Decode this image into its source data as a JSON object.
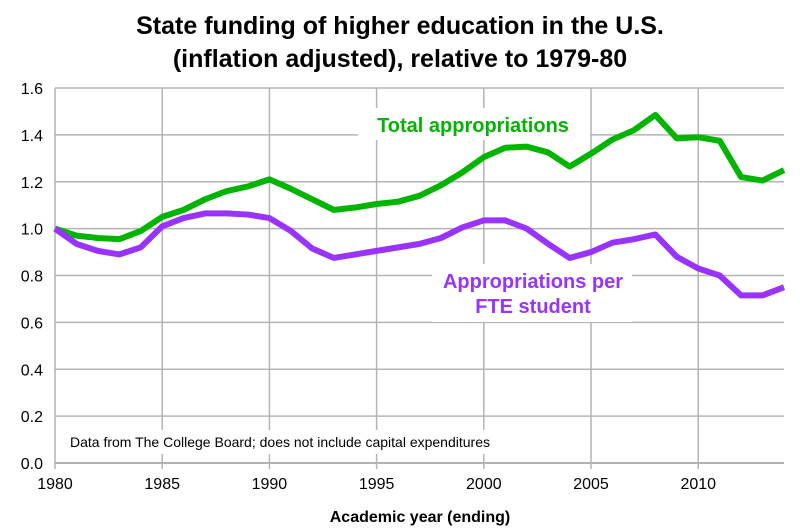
{
  "chart_data": {
    "type": "line",
    "title": [
      "State funding of higher education in the U.S.",
      "(inflation adjusted), relative to 1979-80"
    ],
    "xlabel": "Academic year (ending)",
    "ylabel": "",
    "xlim": [
      1980,
      2014
    ],
    "ylim": [
      0,
      1.6
    ],
    "grid": true,
    "xticks": [
      "1980",
      "1985",
      "1990",
      "1995",
      "2000",
      "2005",
      "2010"
    ],
    "yticks": [
      "0.0",
      "0.2",
      "0.4",
      "0.6",
      "0.8",
      "1.0",
      "1.2",
      "1.4",
      "1.6"
    ],
    "note": "Data from The College Board; does not include capital expenditures",
    "x": [
      1980,
      1981,
      1982,
      1983,
      1984,
      1985,
      1986,
      1987,
      1988,
      1989,
      1990,
      1991,
      1992,
      1993,
      1994,
      1995,
      1996,
      1997,
      1998,
      1999,
      2000,
      2001,
      2002,
      2003,
      2004,
      2005,
      2006,
      2007,
      2008,
      2009,
      2010,
      2011,
      2012,
      2013,
      2014
    ],
    "series": [
      {
        "name": "Total appropriations",
        "label": [
          "Total appropriations"
        ],
        "color": "#00b400",
        "values": [
          1.0,
          0.97,
          0.96,
          0.955,
          0.99,
          1.05,
          1.08,
          1.125,
          1.16,
          1.18,
          1.21,
          1.17,
          1.125,
          1.08,
          1.09,
          1.105,
          1.115,
          1.14,
          1.185,
          1.24,
          1.305,
          1.345,
          1.35,
          1.325,
          1.265,
          1.32,
          1.38,
          1.42,
          1.485,
          1.385,
          1.39,
          1.375,
          1.22,
          1.205,
          1.25
        ]
      },
      {
        "name": "Appropriations per FTE student",
        "label": [
          "Appropriations per",
          "FTE student"
        ],
        "color": "#9933ff",
        "values": [
          1.0,
          0.935,
          0.905,
          0.89,
          0.92,
          1.01,
          1.045,
          1.065,
          1.065,
          1.06,
          1.045,
          0.99,
          0.915,
          0.875,
          0.89,
          0.905,
          0.92,
          0.935,
          0.96,
          1.005,
          1.035,
          1.035,
          1.0,
          0.935,
          0.875,
          0.9,
          0.94,
          0.955,
          0.975,
          0.88,
          0.83,
          0.8,
          0.715,
          0.715,
          0.75
        ]
      }
    ]
  }
}
